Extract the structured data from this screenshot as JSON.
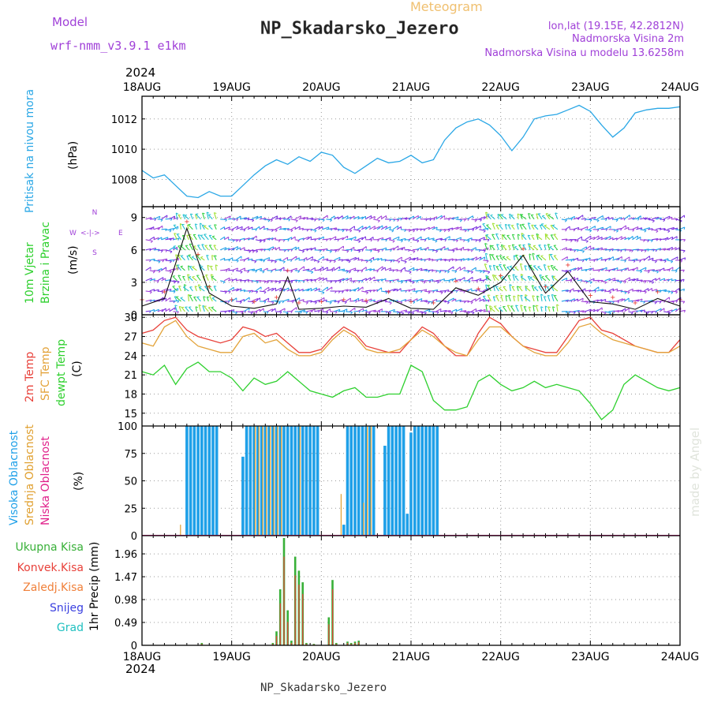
{
  "header": {
    "model_label": "Model",
    "model_name": "wrf-nmm_v3.9.1 e1km",
    "meteogram_label": "Meteogram",
    "station": "NP_Skadarsko_Jezero",
    "lonlat": "lon,lat (19.15E, 42.2812N)",
    "elevation": "Nadmorska Visina 2m",
    "model_elevation": "Nadmorska Visina u modelu 13.6258m",
    "year": "2024",
    "footer_station": "NP_Skadarsko_Jezero",
    "watermark": "made by Angel"
  },
  "colors": {
    "pressure": "#2aa7e6",
    "temp2m": "#e8413a",
    "sfc": "#e3a33a",
    "dewpt": "#2ed02e",
    "high_cloud": "#1fa0e8",
    "mid_cloud": "#e0a030",
    "low_cloud": "#e0208a",
    "total_precip": "#38b038",
    "conv_precip": "#e8413a",
    "frozen": "#f0803a",
    "snow": "#3a40e0",
    "graupel": "#20c0c0",
    "purple": "#a040d8"
  },
  "panels": {
    "pressure": {
      "ylabel": "Pritisak na nivou mora",
      "unit": "(hPa)"
    },
    "wind": {
      "ylabel1": "10m Vjetar",
      "ylabel2": "Brzina i Pravac",
      "unit": "(m/s)",
      "compass": {
        "n": "N",
        "w": "W",
        "e": "E",
        "s": "S",
        "arrows": "<-|->"
      }
    },
    "temp": {
      "label_2m": "2m Temp",
      "label_sfc": "SFC Temp",
      "label_dew": "dewpt Temp",
      "unit": "(C)"
    },
    "cloud": {
      "label_high": "Visoka Oblacnost",
      "label_mid": "Srednja Oblacnost",
      "label_low": "Niska Oblacnost",
      "unit": "(%)"
    },
    "precip": {
      "legend": [
        "Ukupna Kisa",
        "Konvek.Kisa",
        "Zaledj.Kisa",
        "Snijeg",
        "Grad"
      ],
      "unit": "1hr Precip (mm)"
    }
  },
  "chart_data": [
    {
      "type": "line",
      "title": "",
      "ylabel": "Pritisak na nivou mora (hPa)",
      "x_days": [
        "18AUG",
        "19AUG",
        "20AUG",
        "21AUG",
        "22AUG",
        "23AUG",
        "24AUG"
      ],
      "ylim": [
        1006.2,
        1013.5
      ],
      "yticks": [
        1008,
        1010,
        1012
      ],
      "x_hours": [
        0,
        3,
        6,
        9,
        12,
        15,
        18,
        21,
        24,
        27,
        30,
        33,
        36,
        39,
        42,
        45,
        48,
        51,
        54,
        57,
        60,
        63,
        66,
        69,
        72,
        75,
        78,
        81,
        84,
        87,
        90,
        93,
        96,
        99,
        102,
        105,
        108,
        111,
        114,
        117,
        120,
        123,
        126,
        129,
        132,
        135,
        138,
        141,
        144
      ],
      "series": [
        {
          "values": [
            1008.6,
            1008.1,
            1008.3,
            1007.6,
            1006.9,
            1006.8,
            1007.2,
            1006.9,
            1006.9,
            1007.6,
            1008.3,
            1008.9,
            1009.3,
            1009.0,
            1009.5,
            1009.2,
            1009.8,
            1009.6,
            1008.8,
            1008.4,
            1008.9,
            1009.4,
            1009.1,
            1009.2,
            1009.6,
            1009.1,
            1009.3,
            1010.6,
            1011.4,
            1011.8,
            1012.0,
            1011.6,
            1010.9,
            1009.9,
            1010.8,
            1012.0,
            1012.2,
            1012.3,
            1012.6,
            1012.9,
            1012.5,
            1011.6,
            1010.8,
            1011.4,
            1012.4,
            1012.6,
            1012.7,
            1012.7,
            1012.8
          ]
        }
      ]
    },
    {
      "type": "line",
      "title": "",
      "ylabel": "10m Vjetar Brzina i Pravac (m/s)",
      "ylim": [
        0,
        10
      ],
      "yticks": [
        0,
        3,
        6,
        9
      ],
      "x_hours": [
        0,
        6,
        12,
        15,
        18,
        24,
        30,
        36,
        39,
        42,
        48,
        54,
        60,
        66,
        72,
        78,
        84,
        90,
        96,
        102,
        108,
        114,
        120,
        126,
        132,
        138,
        144
      ],
      "series": [
        {
          "name": "wind speed",
          "values": [
            0.8,
            1.5,
            8.0,
            5.0,
            2.0,
            0.8,
            0.6,
            1.0,
            3.5,
            0.5,
            0.6,
            0.8,
            0.7,
            1.5,
            0.6,
            0.5,
            2.5,
            1.8,
            3.0,
            5.5,
            2.0,
            4.0,
            1.2,
            1.0,
            0.5,
            1.5,
            0.8
          ]
        }
      ]
    },
    {
      "type": "line",
      "title": "",
      "ylabel": "Temp (C)",
      "ylim": [
        13.0,
        30.4
      ],
      "yticks": [
        15,
        18,
        21,
        24,
        27,
        30
      ],
      "x_hours": [
        0,
        3,
        6,
        9,
        12,
        15,
        18,
        21,
        24,
        27,
        30,
        33,
        36,
        39,
        42,
        45,
        48,
        51,
        54,
        57,
        60,
        63,
        66,
        69,
        72,
        75,
        78,
        81,
        84,
        87,
        90,
        93,
        96,
        99,
        102,
        105,
        108,
        111,
        114,
        117,
        120,
        123,
        126,
        129,
        132,
        135,
        138,
        141,
        144
      ],
      "series": [
        {
          "name": "2m Temp",
          "values": [
            27.5,
            28.0,
            29.5,
            30.0,
            28.0,
            27.0,
            26.5,
            26.0,
            26.5,
            28.5,
            28.0,
            27.0,
            27.5,
            26.0,
            24.5,
            24.5,
            25.0,
            27.0,
            28.5,
            27.5,
            25.5,
            25.0,
            24.5,
            24.5,
            26.5,
            28.5,
            27.5,
            25.5,
            24.0,
            24.0,
            27.5,
            30.0,
            29.0,
            27.0,
            25.5,
            25.0,
            24.5,
            24.5,
            27.0,
            29.5,
            30.0,
            28.0,
            27.5,
            26.5,
            25.5,
            25.0,
            24.5,
            24.5,
            26.5
          ]
        },
        {
          "name": "SFC Temp",
          "values": [
            26.0,
            25.5,
            28.5,
            29.5,
            27.0,
            25.5,
            25.0,
            24.5,
            24.5,
            27.0,
            27.5,
            26.0,
            26.5,
            25.0,
            24.0,
            24.0,
            24.5,
            26.5,
            28.0,
            27.0,
            25.0,
            24.5,
            24.5,
            25.0,
            26.5,
            28.0,
            27.0,
            25.5,
            24.5,
            24.0,
            26.5,
            28.5,
            28.5,
            27.0,
            25.5,
            24.5,
            24.0,
            24.0,
            26.0,
            28.5,
            29.0,
            27.5,
            26.5,
            26.0,
            25.5,
            25.0,
            24.5,
            24.5,
            25.5
          ]
        },
        {
          "name": "dewpt Temp",
          "values": [
            21.5,
            21.0,
            22.5,
            19.5,
            22.0,
            23.0,
            21.5,
            21.5,
            20.5,
            18.5,
            20.5,
            19.5,
            20.0,
            21.5,
            20.0,
            18.5,
            18.0,
            17.5,
            18.5,
            19.0,
            17.5,
            17.5,
            18.0,
            18.0,
            22.5,
            21.5,
            17.0,
            15.5,
            15.5,
            16.0,
            20.0,
            21.0,
            19.5,
            18.5,
            19.0,
            20.0,
            19.0,
            19.5,
            19.0,
            18.5,
            16.5,
            14.0,
            15.5,
            19.5,
            21.0,
            20.0,
            19.0,
            18.5,
            19.0
          ]
        }
      ]
    },
    {
      "type": "bar",
      "title": "",
      "ylabel": "Oblacnost (%)",
      "ylim": [
        0,
        100
      ],
      "yticks": [
        0,
        25,
        50,
        75,
        100
      ],
      "x_hours": [
        11,
        12,
        13,
        14,
        15,
        16,
        17,
        18,
        19,
        20,
        27,
        28,
        29,
        30,
        31,
        32,
        33,
        34,
        35,
        36,
        37,
        38,
        39,
        40,
        41,
        42,
        43,
        44,
        45,
        46,
        47,
        54,
        55,
        56,
        57,
        58,
        59,
        60,
        61,
        62,
        63,
        64,
        65,
        66,
        67,
        68,
        69,
        70,
        71,
        72,
        73,
        74,
        75,
        76,
        77,
        78,
        79
      ],
      "series": [
        {
          "name": "Visoka Oblacnost",
          "values": [
            0,
            100,
            100,
            100,
            100,
            100,
            100,
            100,
            100,
            100,
            72,
            100,
            100,
            100,
            100,
            100,
            100,
            100,
            100,
            100,
            100,
            100,
            100,
            100,
            100,
            100,
            100,
            100,
            100,
            100,
            100,
            10,
            100,
            100,
            100,
            100,
            100,
            100,
            100,
            100,
            0,
            0,
            82,
            100,
            100,
            100,
            100,
            100,
            20,
            94,
            100,
            100,
            100,
            100,
            100,
            100,
            100
          ]
        },
        {
          "name": "Srednja Oblacnost",
          "values": [
            10,
            0,
            0,
            0,
            0,
            0,
            0,
            0,
            0,
            0,
            0,
            0,
            0,
            0,
            100,
            100,
            100,
            100,
            100,
            100,
            100,
            100,
            0,
            0,
            0,
            0,
            100,
            0,
            0,
            0,
            0,
            38,
            0,
            0,
            0,
            0,
            0,
            30,
            100,
            100,
            0,
            0,
            0,
            0,
            0,
            0,
            0,
            0,
            0,
            0,
            0,
            0,
            0,
            0,
            0,
            0,
            0
          ]
        },
        {
          "name": "Niska Oblacnost",
          "values": [
            0,
            0,
            0,
            0,
            0,
            0,
            0,
            0,
            0,
            0,
            0,
            0,
            0,
            0,
            0,
            0,
            0,
            0,
            0,
            0,
            0,
            0,
            0,
            0,
            0,
            0,
            0,
            0,
            0,
            0,
            0,
            0,
            0,
            0,
            0,
            0,
            0,
            0,
            0,
            0,
            0,
            0,
            0,
            0,
            0,
            0,
            0,
            0,
            0,
            0,
            0,
            0,
            0,
            0,
            0,
            0,
            0
          ]
        }
      ]
    },
    {
      "type": "bar",
      "title": "",
      "ylabel": "1hr Precip (mm)",
      "ylim": [
        0,
        2.35
      ],
      "yticks": [
        0,
        0.49,
        0.98,
        1.47,
        1.96
      ],
      "x_hours": [
        16,
        35,
        36,
        37,
        38,
        39,
        40,
        41,
        42,
        43,
        44,
        46,
        50,
        51,
        52,
        55,
        56,
        57,
        58
      ],
      "series": [
        {
          "name": "Ukupna Kisa",
          "values": [
            0.05,
            0.05,
            0.3,
            1.2,
            2.3,
            0.75,
            0.1,
            1.9,
            1.6,
            1.35,
            0.05,
            0.03,
            0.6,
            1.4,
            0.05,
            0.08,
            0.05,
            0.08,
            0.1
          ]
        },
        {
          "name": "Konvek.Kisa",
          "values": [
            0.03,
            0.03,
            0.2,
            0.9,
            1.9,
            0.5,
            0.05,
            1.5,
            1.3,
            1.1,
            0.03,
            0.02,
            0.45,
            1.2,
            0.03,
            0.05,
            0.03,
            0.05,
            0.07
          ]
        }
      ]
    }
  ]
}
